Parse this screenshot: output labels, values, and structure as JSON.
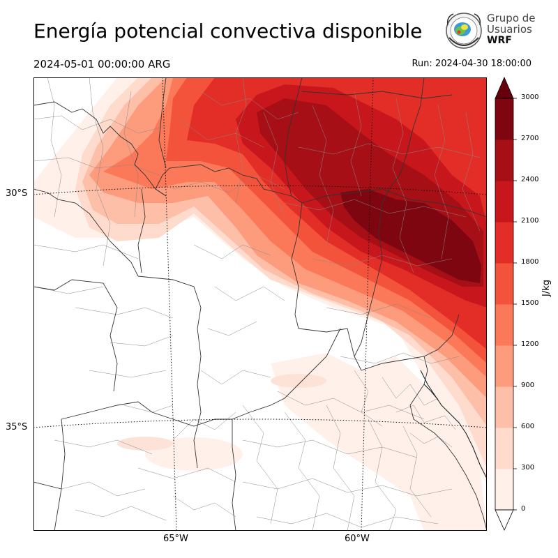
{
  "title": "Energía potencial convectiva disponible",
  "valid_time": "2024-05-01 00:00:00 ARG",
  "run_time": "Run: 2024-04-30 18:00:00",
  "logo": {
    "line1": "Grupo de",
    "line2": "Usuarios",
    "line3": "WRF",
    "icon": "wrf-group-seal-icon"
  },
  "axes": {
    "lat_labels": [
      "30°S",
      "35°S"
    ],
    "lon_labels": [
      "65°W",
      "60°W"
    ]
  },
  "colorbar": {
    "unit": "J/kg",
    "ticks": [
      "0",
      "300",
      "600",
      "900",
      "1200",
      "1500",
      "1800",
      "2100",
      "2400",
      "2700",
      "3000"
    ],
    "colors": [
      "#fff0ea",
      "#fedbcc",
      "#fdbfa8",
      "#fc9c7d",
      "#fb7858",
      "#f4533b",
      "#e22e27",
      "#c7171c",
      "#a50f15",
      "#7e0610"
    ],
    "extend_color": "#67000d"
  },
  "chart_data": {
    "type": "heatmap",
    "variable": "CAPE",
    "unit": "J/kg",
    "levels": [
      0,
      300,
      600,
      900,
      1200,
      1500,
      1800,
      2100,
      2400,
      2700,
      3000
    ],
    "lat_ticks": [
      -30,
      -35
    ],
    "lon_ticks": [
      -65,
      -60
    ],
    "max_region_approx": {
      "lat": -31,
      "lon": -59,
      "value_range": "2700-3000+"
    }
  }
}
